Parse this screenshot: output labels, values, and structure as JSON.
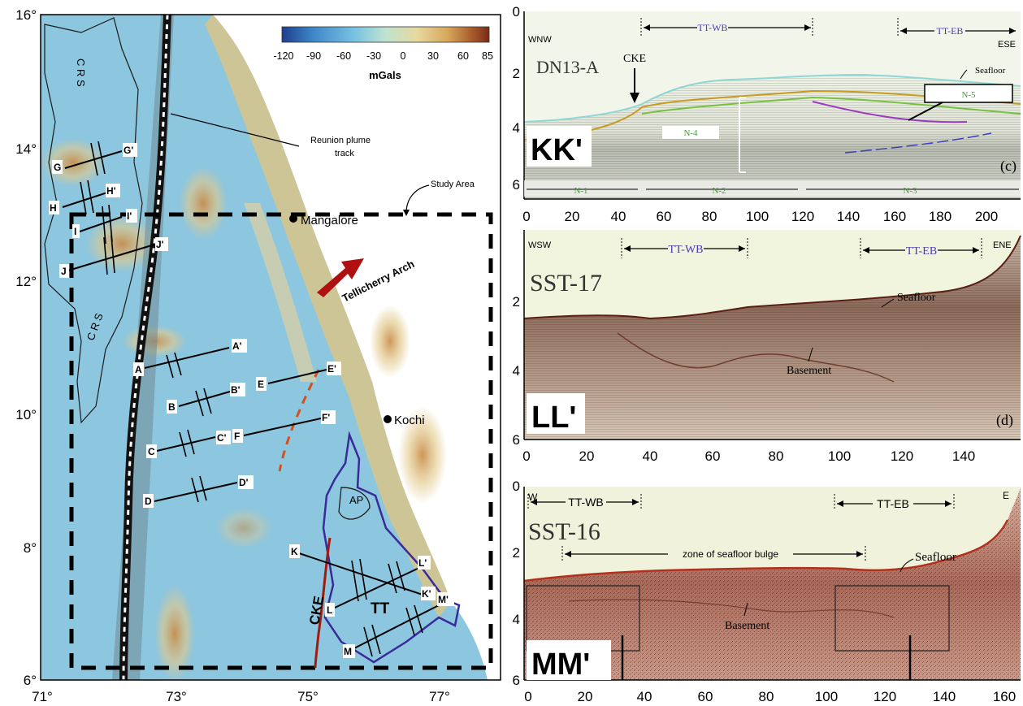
{
  "map": {
    "lat_labels": [
      "16°",
      "14°",
      "12°",
      "10°",
      "8°",
      "6°"
    ],
    "lon_labels": [
      "71°",
      "73°",
      "75°",
      "77°"
    ],
    "colorbar": {
      "ticks": [
        "-120",
        "-90",
        "-60",
        "-30",
        "0",
        "30",
        "60",
        "85"
      ],
      "unit": "mGals",
      "colors": [
        "#1c3f8c",
        "#3f86c9",
        "#79c2e3",
        "#bfe3cf",
        "#e7d9a0",
        "#d7a75a",
        "#a65a2a",
        "#7a2a18"
      ]
    },
    "labels": {
      "crs_top": "C R S",
      "crs_bottom": "C R S",
      "plume": "Reunion plume track",
      "study_area": "Study Area",
      "mangalore": "Mangalore",
      "tellicherry": "Tellicherry Arch",
      "kochi": "Kochi",
      "ap": "AP",
      "tt": "TT",
      "cke": "CKE"
    },
    "profiles": [
      {
        "a": "A",
        "b": "A'"
      },
      {
        "a": "B",
        "b": "B'"
      },
      {
        "a": "C",
        "b": "C'"
      },
      {
        "a": "D",
        "b": "D'"
      },
      {
        "a": "E",
        "b": "E'"
      },
      {
        "a": "F",
        "b": "F'"
      },
      {
        "a": "G",
        "b": "G'"
      },
      {
        "a": "H",
        "b": "H'"
      },
      {
        "a": "I",
        "b": "I'"
      },
      {
        "a": "J",
        "b": "J'"
      },
      {
        "a": "K",
        "b": "K'"
      },
      {
        "a": "L",
        "b": "L'"
      },
      {
        "a": "M",
        "b": "M'"
      }
    ]
  },
  "panel_c": {
    "y_ticks": [
      "0",
      "2",
      "4",
      "6"
    ],
    "x_ticks": [
      "0",
      "20",
      "40",
      "60",
      "80",
      "100",
      "120",
      "140",
      "160",
      "180",
      "200"
    ],
    "dir_left": "WNW",
    "dir_right": "ESE",
    "line_name": "DN13-A",
    "cke": "CKE",
    "ttwb": "TT-WB",
    "tteb": "TT-EB",
    "seafloor": "Seafloor",
    "n1": "N-1",
    "n2": "N-2",
    "n3": "N-3",
    "n4": "N-4",
    "n5": "N-5",
    "label": "KK'",
    "panel": "(c)"
  },
  "panel_d": {
    "y_ticks": [
      "2",
      "4",
      "6"
    ],
    "x_ticks": [
      "0",
      "20",
      "40",
      "60",
      "80",
      "100",
      "120",
      "140"
    ],
    "dir_left": "WSW",
    "dir_right": "ENE",
    "line_name": "SST-17",
    "ttwb": "TT-WB",
    "tteb": "TT-EB",
    "seafloor": "Seafloor",
    "basement": "Basement",
    "label": "LL'",
    "panel": "(d)"
  },
  "panel_e": {
    "y_ticks": [
      "0",
      "2",
      "4",
      "6"
    ],
    "x_ticks": [
      "0",
      "20",
      "40",
      "60",
      "80",
      "100",
      "120",
      "140",
      "160"
    ],
    "dir_left": "W",
    "dir_right": "E",
    "line_name": "SST-16",
    "ttwb": "TT-WB",
    "tteb": "TT-EB",
    "bulge": "zone of seafloor bulge",
    "seafloor": "Seafloor",
    "basement": "Basement",
    "label": "MM'"
  }
}
